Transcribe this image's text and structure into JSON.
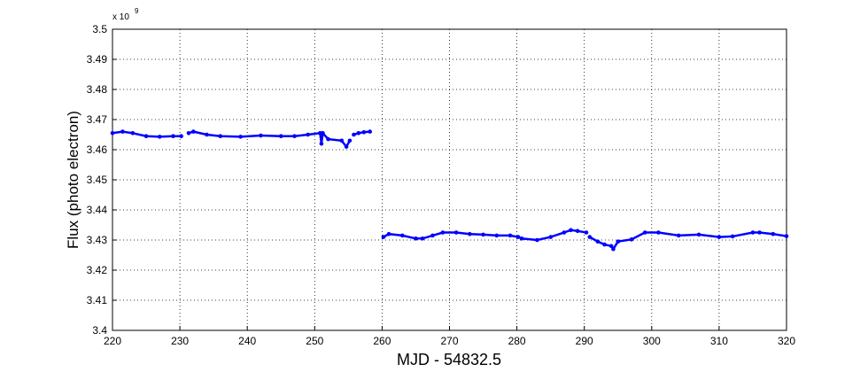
{
  "chart_data": {
    "type": "line",
    "xlabel": "MJD - 54832.5",
    "ylabel": "Flux (photo electron)",
    "y_exponent_base": "x 10",
    "y_exponent": "9",
    "xlim": [
      220,
      320
    ],
    "xticks": [
      220,
      230,
      240,
      250,
      260,
      270,
      280,
      290,
      300,
      310,
      320
    ],
    "ylim": [
      3.4,
      3.5
    ],
    "yticks": [
      3.4,
      3.41,
      3.42,
      3.43,
      3.44,
      3.45,
      3.46,
      3.47,
      3.48,
      3.49,
      3.5
    ],
    "grid": true,
    "series": [
      {
        "color": "#0000ff",
        "x": [
          220,
          221.5,
          223,
          225,
          227,
          229,
          230.2,
          null,
          231.3,
          232,
          234,
          236,
          239,
          242,
          245,
          247,
          249,
          250.8,
          251,
          251.2,
          252,
          254,
          254.7,
          255.2,
          null,
          255.8,
          256.5,
          257.3,
          258.2,
          null,
          260.2,
          261,
          263,
          265,
          266,
          267.5,
          269,
          271,
          273,
          275,
          277,
          279,
          280.2,
          null,
          280.7,
          283,
          285,
          287,
          288,
          289,
          290.3,
          null,
          290.8,
          292,
          293,
          294,
          294.3,
          295,
          297,
          299,
          301,
          304,
          307,
          310,
          312,
          315,
          316,
          318,
          320
        ],
        "values": [
          3.4655,
          3.466,
          3.4655,
          3.4645,
          3.4643,
          3.4645,
          3.4645,
          null,
          3.4655,
          3.466,
          3.465,
          3.4645,
          3.4643,
          3.4647,
          3.4645,
          3.4645,
          3.465,
          3.4655,
          3.462,
          3.4655,
          3.4635,
          3.463,
          3.461,
          3.463,
          null,
          3.465,
          3.4655,
          3.4658,
          3.466,
          null,
          3.431,
          3.432,
          3.4315,
          3.4305,
          3.4305,
          3.4315,
          3.4325,
          3.4325,
          3.432,
          3.4318,
          3.4315,
          3.4315,
          3.431,
          null,
          3.4305,
          3.43,
          3.431,
          3.4325,
          3.4333,
          3.433,
          3.4325,
          null,
          3.431,
          3.4295,
          3.4285,
          3.428,
          3.427,
          3.4295,
          3.4302,
          3.4325,
          3.4325,
          3.4315,
          3.4318,
          3.431,
          3.4312,
          3.4325,
          3.4325,
          3.432,
          3.4313
        ]
      }
    ]
  }
}
